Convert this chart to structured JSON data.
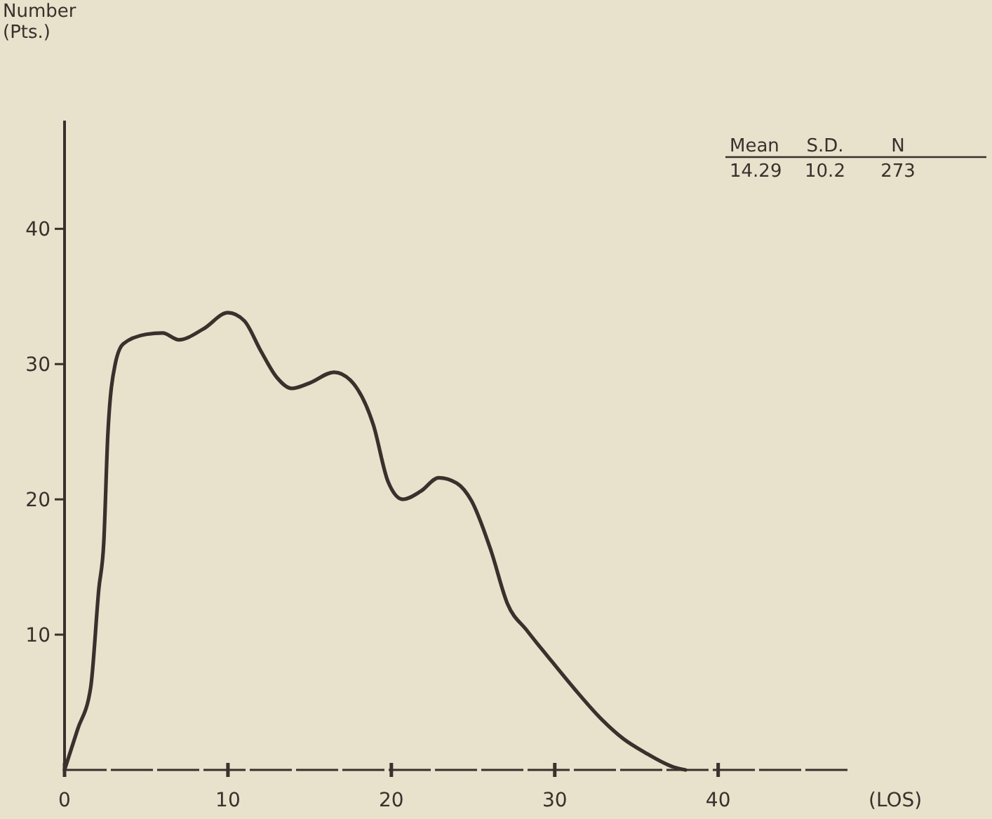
{
  "chart_data": {
    "type": "line",
    "ylabel": "Number\n(Pts.)",
    "xlabel": "(LOS)",
    "xlim": [
      0,
      48
    ],
    "ylim": [
      0,
      48
    ],
    "xticks": [
      0,
      10,
      20,
      30,
      40
    ],
    "yticks": [
      10,
      20,
      30,
      40
    ],
    "grid": false,
    "marker": "none",
    "line_style": "solid",
    "annotations": [
      "Mean",
      "S.D.",
      "N",
      "14.29",
      "10.2",
      "273"
    ],
    "series": [
      {
        "color": "#3a302c",
        "x": [
          0,
          0.8,
          1.6,
          2.1,
          2.4,
          2.65,
          3.1,
          3.6,
          5,
          6,
          7,
          8.5,
          10,
          11,
          12,
          13,
          13.9,
          15,
          16.5,
          17.5,
          18.9,
          19.8,
          20.7,
          21.8,
          22.9,
          24,
          24.9,
          26.1,
          27.1,
          28.3,
          29.5,
          31.2,
          32.9,
          34.2,
          35.5,
          37.3,
          38
        ],
        "values": [
          0,
          3,
          6.1,
          13.4,
          16.8,
          24.8,
          30,
          31.5,
          32.2,
          32.3,
          31.8,
          32.6,
          33.8,
          33.2,
          31,
          29,
          28.2,
          28.6,
          29.4,
          28.8,
          25.5,
          21.3,
          20,
          20.6,
          21.6,
          21.2,
          19.9,
          16.2,
          12.3,
          10.3,
          8.5,
          6,
          3.7,
          2.3,
          1.3,
          0.2,
          0
        ]
      }
    ]
  }
}
